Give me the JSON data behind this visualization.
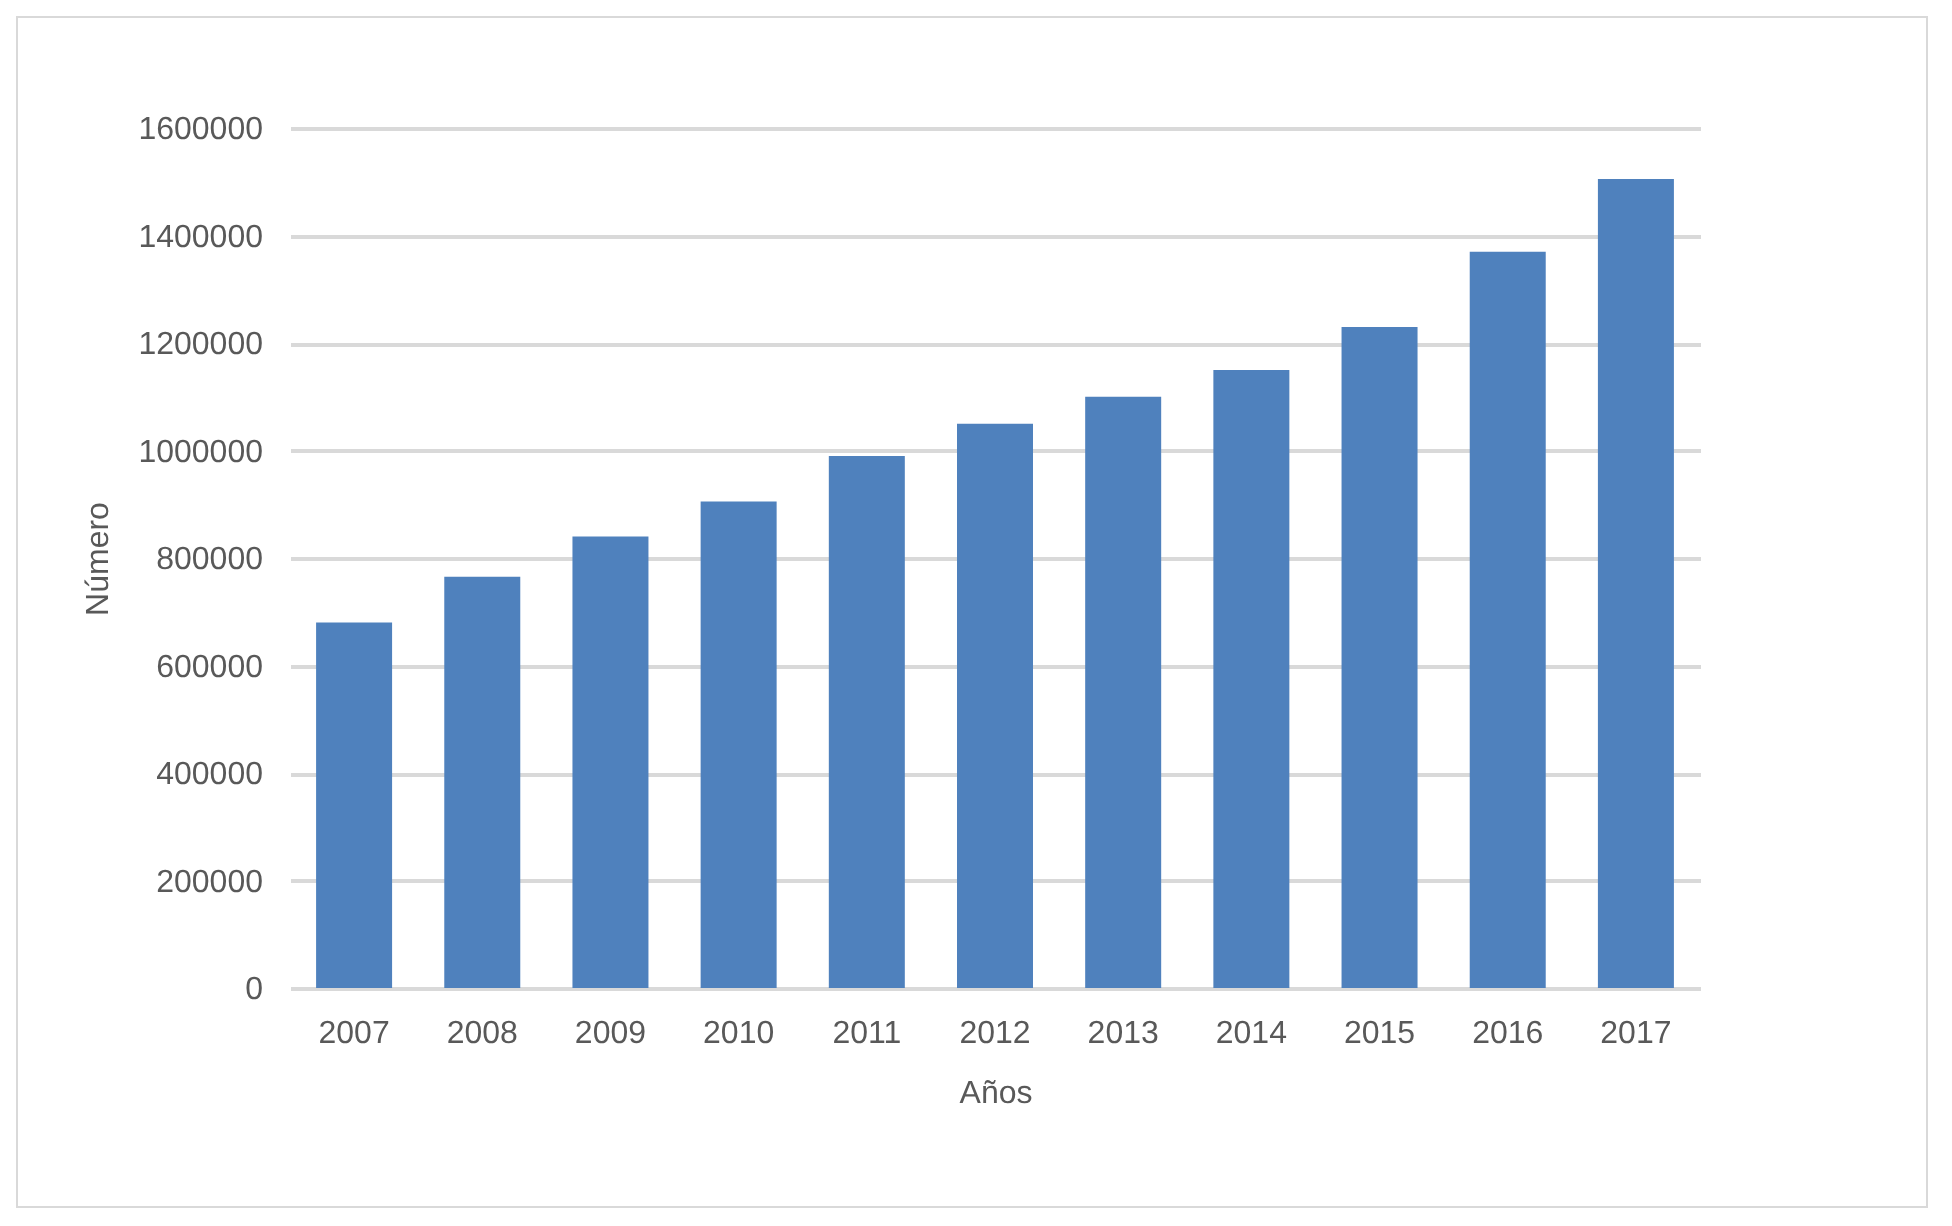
{
  "chart_data": {
    "type": "bar",
    "xlabel": "Años",
    "ylabel": "Número",
    "categories": [
      "2007",
      "2008",
      "2009",
      "2010",
      "2011",
      "2012",
      "2013",
      "2014",
      "2015",
      "2016",
      "2017"
    ],
    "values": [
      680000,
      765000,
      840000,
      905000,
      990000,
      1050000,
      1100000,
      1150000,
      1230000,
      1370000,
      1505000
    ],
    "color": "#4f81bd",
    "ylim": [
      0,
      1600000
    ],
    "yticks": [
      0,
      200000,
      400000,
      600000,
      800000,
      1000000,
      1200000,
      1400000,
      1600000
    ],
    "grid": "y"
  }
}
